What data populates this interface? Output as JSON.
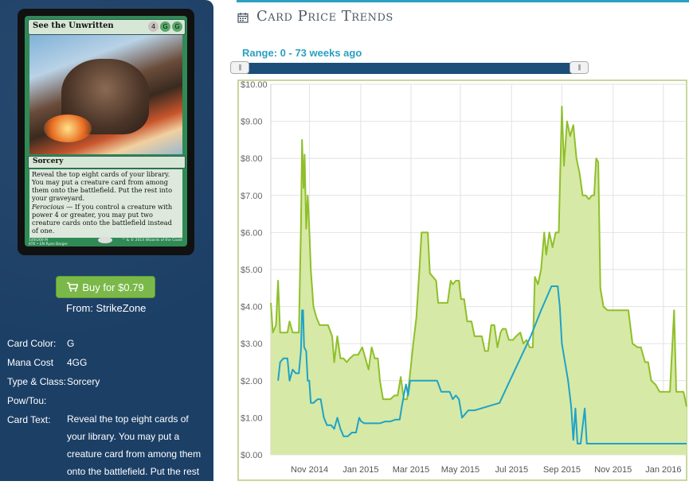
{
  "card": {
    "name": "See the Unwritten",
    "mana_symbols": [
      "4",
      "G",
      "G"
    ],
    "type_line": "Sorcery",
    "rules_text": "Reveal the top eight cards of your library. You may put a creature card from among them onto the battlefield. Put the rest into your graveyard.",
    "ferocious_keyword": "Ferocious",
    "ferocious_text": " — If you control a creature with power 4 or greater, you may put two creature cards onto the battlefield instead of one.",
    "collector_line": "149/269 M",
    "set_line": "KTK • EN",
    "artist": "Ryan Barger",
    "copyright": "™ & © 2014 Wizards of the Coast"
  },
  "buy": {
    "label": "Buy for $0.79",
    "from_label": "From: StrikeZone"
  },
  "info": {
    "color_label": "Card Color:",
    "color_value": "G",
    "mana_label": "Mana Cost",
    "mana_value": "4GG",
    "type_label": "Type & Class:",
    "type_value": "Sorcery",
    "pt_label": "Pow/Tou:",
    "pt_value": "",
    "text_label": "Card Text:",
    "text_value": "Reveal the top eight cards of your library. You may put a creature card from among them onto the battlefield. Put the rest"
  },
  "header": {
    "title": "Card Price Trends",
    "accent": "#2aa0c2"
  },
  "range": {
    "label": "Range: 0 - 73 weeks ago",
    "min": 0,
    "max": 73
  },
  "chart_data": {
    "type": "area",
    "y_axis": {
      "min": 0,
      "max": 10,
      "ticks": [
        "$0.00",
        "$1.00",
        "$2.00",
        "$3.00",
        "$4.00",
        "$5.00",
        "$6.00",
        "$7.00",
        "$8.00",
        "$9.00",
        "$10.00"
      ]
    },
    "x_ticks": [
      "Nov 2014",
      "Jan 2015",
      "Mar 2015",
      "May 2015",
      "Jul 2015",
      "Sep 2015",
      "Nov 2015",
      "Jan 2016"
    ],
    "grid": true,
    "series": [
      {
        "color": "#8fbf2a",
        "fill": "#d7e9a6",
        "points": [
          [
            0,
            4.1
          ],
          [
            0.2,
            3.3
          ],
          [
            0.5,
            3.5
          ],
          [
            0.7,
            4.7
          ],
          [
            0.9,
            3.3
          ],
          [
            1.2,
            3.3
          ],
          [
            1.6,
            3.3
          ],
          [
            1.8,
            3.6
          ],
          [
            2.1,
            3.3
          ],
          [
            2.4,
            3.3
          ],
          [
            2.7,
            3.3
          ],
          [
            2.9,
            6.1
          ],
          [
            3.0,
            8.5
          ],
          [
            3.15,
            7.2
          ],
          [
            3.25,
            8.1
          ],
          [
            3.4,
            6.1
          ],
          [
            3.55,
            7.0
          ],
          [
            3.7,
            6.1
          ],
          [
            3.85,
            5.0
          ],
          [
            4.1,
            4.0
          ],
          [
            4.4,
            3.7
          ],
          [
            4.7,
            3.5
          ],
          [
            5.0,
            3.5
          ],
          [
            5.5,
            3.5
          ],
          [
            5.9,
            3.2
          ],
          [
            6.1,
            2.5
          ],
          [
            6.4,
            3.2
          ],
          [
            6.7,
            2.6
          ],
          [
            7.0,
            2.6
          ],
          [
            7.3,
            2.5
          ],
          [
            7.6,
            2.6
          ],
          [
            8.0,
            2.7
          ],
          [
            8.4,
            2.7
          ],
          [
            8.8,
            2.9
          ],
          [
            9.1,
            2.6
          ],
          [
            9.4,
            2.3
          ],
          [
            9.7,
            2.9
          ],
          [
            10.0,
            2.6
          ],
          [
            10.3,
            2.6
          ],
          [
            10.5,
            2.0
          ],
          [
            10.8,
            1.5
          ],
          [
            11.1,
            1.5
          ],
          [
            11.5,
            1.5
          ],
          [
            11.9,
            1.6
          ],
          [
            12.2,
            1.6
          ],
          [
            12.5,
            2.1
          ],
          [
            12.8,
            1.5
          ],
          [
            13.1,
            1.5
          ],
          [
            13.4,
            2.2
          ],
          [
            13.7,
            3.0
          ],
          [
            14.0,
            3.7
          ],
          [
            14.3,
            5.0
          ],
          [
            14.5,
            6.0
          ],
          [
            14.8,
            6.0
          ],
          [
            15.1,
            6.0
          ],
          [
            15.3,
            4.9
          ],
          [
            15.6,
            4.8
          ],
          [
            15.9,
            4.7
          ],
          [
            16.1,
            4.1
          ],
          [
            16.4,
            4.1
          ],
          [
            16.7,
            4.1
          ],
          [
            17.0,
            4.1
          ],
          [
            17.3,
            4.7
          ],
          [
            17.5,
            4.6
          ],
          [
            17.8,
            4.7
          ],
          [
            18.1,
            4.7
          ],
          [
            18.3,
            4.2
          ],
          [
            18.6,
            4.2
          ],
          [
            18.9,
            3.6
          ],
          [
            19.3,
            3.6
          ],
          [
            19.6,
            3.2
          ],
          [
            20.0,
            3.2
          ],
          [
            20.3,
            3.2
          ],
          [
            20.6,
            2.8
          ],
          [
            20.9,
            2.8
          ],
          [
            21.2,
            3.5
          ],
          [
            21.5,
            3.5
          ],
          [
            21.8,
            2.9
          ],
          [
            22.1,
            3.3
          ],
          [
            22.3,
            3.4
          ],
          [
            22.6,
            3.4
          ],
          [
            22.9,
            3.1
          ],
          [
            23.3,
            3.1
          ],
          [
            23.6,
            3.2
          ],
          [
            24.0,
            3.3
          ],
          [
            24.3,
            3.0
          ],
          [
            24.6,
            3.1
          ],
          [
            24.9,
            2.9
          ],
          [
            25.2,
            2.9
          ],
          [
            25.4,
            4.8
          ],
          [
            25.7,
            4.6
          ],
          [
            26.0,
            5.0
          ],
          [
            26.3,
            6.0
          ],
          [
            26.5,
            5.4
          ],
          [
            26.8,
            6.0
          ],
          [
            27.1,
            5.6
          ],
          [
            27.4,
            6.0
          ],
          [
            27.7,
            6.0
          ],
          [
            28.0,
            9.4
          ],
          [
            28.2,
            7.8
          ],
          [
            28.5,
            9.0
          ],
          [
            28.8,
            8.6
          ],
          [
            29.1,
            8.9
          ],
          [
            29.4,
            8.0
          ],
          [
            29.7,
            7.6
          ],
          [
            30.0,
            7.0
          ],
          [
            30.3,
            7.0
          ],
          [
            30.6,
            6.9
          ],
          [
            30.9,
            7.0
          ],
          [
            31.1,
            7.0
          ],
          [
            31.3,
            8.0
          ],
          [
            31.5,
            7.9
          ],
          [
            31.7,
            4.5
          ],
          [
            32.0,
            4.0
          ],
          [
            32.4,
            3.9
          ],
          [
            32.8,
            3.9
          ],
          [
            33.2,
            3.9
          ],
          [
            33.6,
            3.9
          ],
          [
            34.0,
            3.9
          ],
          [
            34.4,
            3.9
          ],
          [
            34.8,
            3.0
          ],
          [
            35.3,
            2.9
          ],
          [
            35.6,
            2.9
          ],
          [
            36.0,
            2.5
          ],
          [
            36.3,
            2.5
          ],
          [
            36.6,
            2.0
          ],
          [
            37.0,
            1.9
          ],
          [
            37.4,
            1.7
          ],
          [
            37.8,
            1.7
          ],
          [
            38.4,
            1.7
          ],
          [
            38.8,
            3.9
          ],
          [
            39.0,
            1.7
          ],
          [
            39.4,
            1.7
          ],
          [
            39.7,
            1.7
          ],
          [
            40.0,
            1.3
          ]
        ]
      },
      {
        "color": "#1ea3c8",
        "points": [
          [
            0.7,
            2.0
          ],
          [
            0.9,
            2.5
          ],
          [
            1.2,
            2.6
          ],
          [
            1.6,
            2.6
          ],
          [
            1.8,
            2.0
          ],
          [
            2.1,
            2.3
          ],
          [
            2.4,
            2.2
          ],
          [
            2.7,
            2.2
          ],
          [
            2.9,
            2.8
          ],
          [
            3.0,
            3.9
          ],
          [
            3.1,
            3.9
          ],
          [
            3.2,
            2.9
          ],
          [
            3.4,
            2.8
          ],
          [
            3.55,
            2.0
          ],
          [
            3.7,
            2.0
          ],
          [
            3.85,
            1.4
          ],
          [
            4.1,
            1.4
          ],
          [
            4.5,
            1.5
          ],
          [
            4.8,
            1.5
          ],
          [
            5.1,
            1.0
          ],
          [
            5.4,
            0.8
          ],
          [
            5.8,
            0.8
          ],
          [
            6.1,
            0.7
          ],
          [
            6.4,
            1.0
          ],
          [
            6.7,
            0.7
          ],
          [
            7.0,
            0.5
          ],
          [
            7.4,
            0.5
          ],
          [
            7.8,
            0.6
          ],
          [
            8.2,
            0.6
          ],
          [
            8.5,
            1.0
          ],
          [
            8.7,
            0.9
          ],
          [
            9.0,
            0.85
          ],
          [
            9.5,
            0.85
          ],
          [
            10.0,
            0.85
          ],
          [
            10.5,
            0.85
          ],
          [
            11.0,
            0.9
          ],
          [
            11.5,
            0.9
          ],
          [
            12.0,
            0.95
          ],
          [
            12.4,
            0.95
          ],
          [
            12.6,
            1.3
          ],
          [
            12.8,
            1.6
          ],
          [
            13.0,
            1.9
          ],
          [
            13.2,
            1.6
          ],
          [
            13.4,
            2.0
          ],
          [
            13.7,
            2.0
          ],
          [
            14.0,
            2.0
          ],
          [
            14.5,
            2.0
          ],
          [
            15.0,
            2.0
          ],
          [
            15.5,
            2.0
          ],
          [
            16.0,
            2.0
          ],
          [
            16.4,
            1.7
          ],
          [
            16.8,
            1.7
          ],
          [
            17.2,
            1.7
          ],
          [
            17.5,
            1.5
          ],
          [
            17.8,
            1.6
          ],
          [
            18.1,
            1.5
          ],
          [
            18.4,
            1.0
          ],
          [
            18.7,
            1.1
          ],
          [
            19.0,
            1.2
          ],
          [
            19.6,
            1.2
          ],
          [
            20.2,
            1.25
          ],
          [
            20.8,
            1.3
          ],
          [
            21.4,
            1.35
          ],
          [
            22.0,
            1.4
          ],
          [
            23.0,
            2.0
          ],
          [
            24.0,
            2.6
          ],
          [
            25.0,
            3.2
          ],
          [
            26.0,
            3.9
          ],
          [
            27.0,
            4.55
          ],
          [
            27.6,
            4.55
          ],
          [
            27.8,
            4.0
          ],
          [
            28.0,
            3.0
          ],
          [
            28.3,
            2.5
          ],
          [
            28.6,
            2.0
          ],
          [
            28.9,
            1.3
          ],
          [
            29.1,
            0.4
          ],
          [
            29.3,
            1.25
          ],
          [
            29.5,
            0.3
          ],
          [
            29.8,
            0.3
          ],
          [
            30.2,
            1.25
          ],
          [
            30.4,
            0.3
          ],
          [
            30.8,
            0.3
          ],
          [
            31.2,
            0.3
          ],
          [
            32.0,
            0.3
          ],
          [
            33.0,
            0.3
          ],
          [
            34.0,
            0.3
          ],
          [
            35.0,
            0.3
          ],
          [
            36.0,
            0.3
          ],
          [
            37.0,
            0.3
          ],
          [
            38.0,
            0.3
          ],
          [
            39.0,
            0.3
          ],
          [
            40.0,
            0.3
          ]
        ]
      }
    ]
  }
}
